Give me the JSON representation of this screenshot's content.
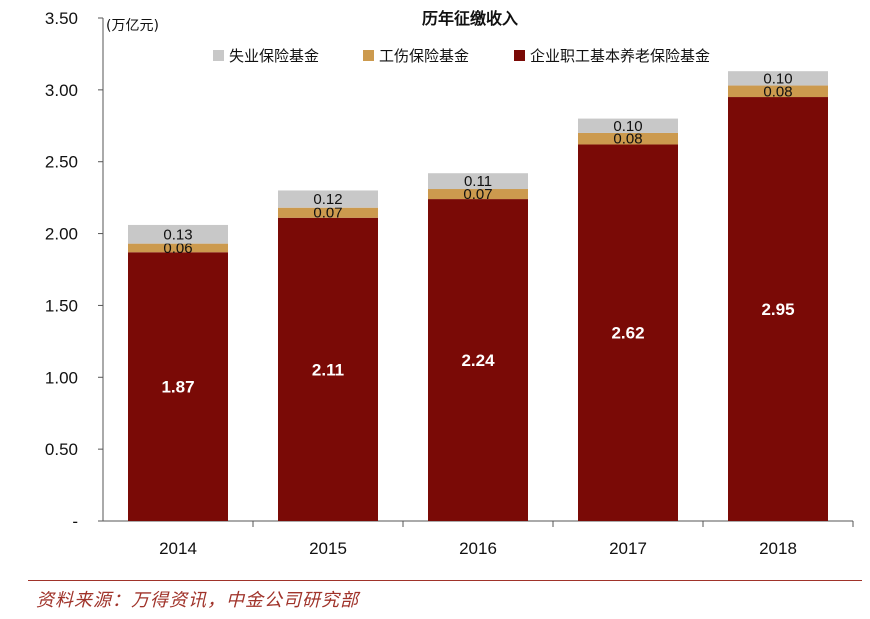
{
  "chart_data": {
    "type": "bar",
    "stacked": true,
    "title": "历年征缴收入",
    "unit_label": "(万亿元)",
    "xlabel": "",
    "ylabel": "",
    "ylim": [
      0,
      3.5
    ],
    "yticks": [
      0,
      0.5,
      1.0,
      1.5,
      2.0,
      2.5,
      3.0,
      3.5
    ],
    "ytick_labels": [
      "-",
      "0.50",
      "1.00",
      "1.50",
      "2.00",
      "2.50",
      "3.00",
      "3.50"
    ],
    "categories": [
      "2014",
      "2015",
      "2016",
      "2017",
      "2018"
    ],
    "grid": false,
    "legend_position": "top",
    "series": [
      {
        "name": "企业职工基本养老保险基金",
        "color": "#7a0a06",
        "values": [
          1.87,
          2.11,
          2.24,
          2.62,
          2.95
        ],
        "labels": [
          "1.87",
          "2.11",
          "2.24",
          "2.62",
          "2.95"
        ]
      },
      {
        "name": "工伤保险基金",
        "color": "#cc9a4e",
        "values": [
          0.06,
          0.07,
          0.07,
          0.08,
          0.08
        ],
        "labels": [
          "0.06",
          "0.07",
          "0.07",
          "0.08",
          "0.08"
        ]
      },
      {
        "name": "失业保险基金",
        "color": "#c8c8c8",
        "values": [
          0.13,
          0.12,
          0.11,
          0.1,
          0.1
        ],
        "labels": [
          "0.13",
          "0.12",
          "0.11",
          "0.10",
          "0.10"
        ]
      }
    ],
    "legend_order": [
      "失业保险基金",
      "工伤保险基金",
      "企业职工基本养老保险基金"
    ]
  },
  "source_note": "资料来源：万得资讯，中金公司研究部"
}
